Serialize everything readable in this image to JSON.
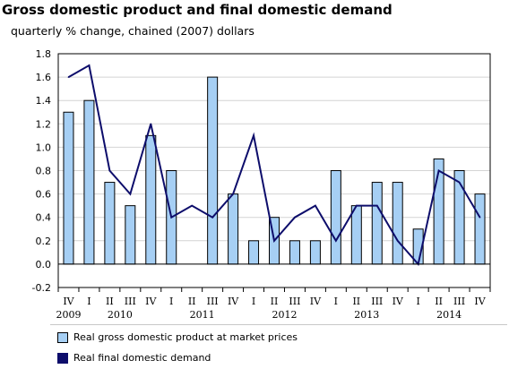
{
  "colors": {
    "bar_fill": "#a6cff4",
    "bar_stroke": "#000000",
    "line": "#0d0d6b"
  },
  "chart_data": {
    "type": "bar",
    "title": "Gross domestic product and final domestic demand",
    "subtitle": "quarterly % change, chained (2007) dollars",
    "quarter_labels": [
      "IV",
      "I",
      "II",
      "III",
      "IV",
      "I",
      "II",
      "III",
      "IV",
      "I",
      "II",
      "III",
      "IV",
      "I",
      "II",
      "III",
      "IV",
      "I",
      "II",
      "III",
      "IV"
    ],
    "year_labels": [
      "2009",
      "2010",
      "2011",
      "2012",
      "2013",
      "2014"
    ],
    "ylim": [
      -0.2,
      1.8
    ],
    "yticks": [
      "-0.2",
      "0.0",
      "0.2",
      "0.4",
      "0.6",
      "0.8",
      "1.0",
      "1.2",
      "1.4",
      "1.6",
      "1.8"
    ],
    "grid": "horizontal",
    "series": [
      {
        "name": "Real gross domestic product at market prices",
        "type": "bar",
        "values": [
          1.3,
          1.4,
          0.7,
          0.5,
          1.1,
          0.8,
          null,
          1.6,
          0.6,
          0.2,
          0.4,
          0.2,
          0.2,
          0.8,
          0.5,
          0.7,
          0.7,
          0.3,
          0.9,
          0.8,
          0.6
        ]
      },
      {
        "name": "Real final domestic demand",
        "type": "line",
        "values": [
          1.6,
          1.7,
          0.8,
          0.6,
          1.2,
          0.4,
          0.5,
          0.4,
          0.6,
          1.1,
          0.2,
          0.4,
          0.5,
          0.2,
          0.5,
          0.5,
          0.2,
          0.0,
          0.8,
          0.7,
          0.4
        ]
      }
    ]
  }
}
